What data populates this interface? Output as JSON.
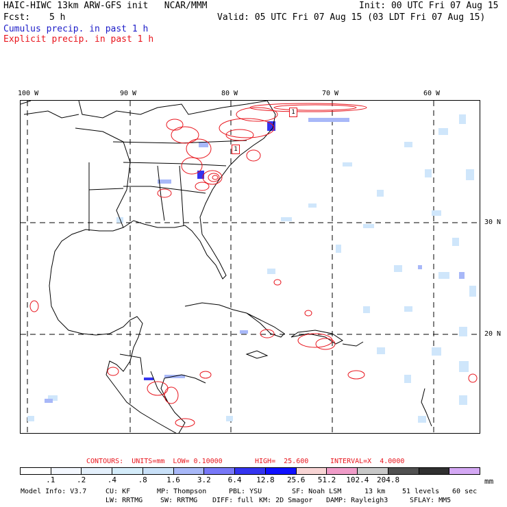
{
  "header": {
    "model_line": "HAIC-HIWC 13km ARW-GFS init   NCAR/MMM",
    "init": "Init: 00 UTC Fri 07 Aug 15",
    "fcst_label": "Fcst:",
    "fcst_value": "5 h",
    "valid": "Valid: 05 UTC Fri 07 Aug 15 (03 LDT Fri 07 Aug 15)",
    "cumulus": "Cumulus precip. in past 1 h",
    "explicit": "Explicit precip. in past 1 h"
  },
  "map": {
    "lon_labels": [
      "100 W",
      "90 W",
      "80 W",
      "70 W",
      "60 W"
    ],
    "lat_labels": [
      "30 N",
      "20 N"
    ],
    "markers": [
      "1",
      "1"
    ]
  },
  "contour_line": {
    "contours": "CONTOURS:  UNITS=mm  LOW= 0.10000",
    "high": "HIGH=  25.600",
    "interval": "INTERVAL=X  4.0000"
  },
  "colorbar": {
    "colors": [
      "#ffffff",
      "#f4f8ff",
      "#e4f0fc",
      "#d4ecfa",
      "#c8e0f8",
      "#a8b8f8",
      "#7878f8",
      "#3434f0",
      "#1010ff",
      "#f8d4d4",
      "#f09cc8",
      "#c8c8c8",
      "#505050",
      "#303030",
      "#d4a8f4"
    ],
    "labels": [
      ".1",
      ".2",
      ".4",
      ".8",
      "1.6",
      "3.2",
      "6.4",
      "12.8",
      "25.6",
      "51.2",
      "102.4",
      "204.8"
    ],
    "unit": "mm"
  },
  "footer": {
    "line1": [
      "Model Info: V3.7",
      "CU: KF",
      "MP: Thompson",
      "PBL: YSU",
      "SF: Noah LSM",
      "13 km",
      "51 levels",
      "60 sec"
    ],
    "line2": [
      "LW: RRTMG",
      "SW: RRTMG",
      "DIFF: full",
      "KM: 2D Smagor",
      "DAMP: Rayleigh3",
      "SFLAY: MM5"
    ]
  }
}
